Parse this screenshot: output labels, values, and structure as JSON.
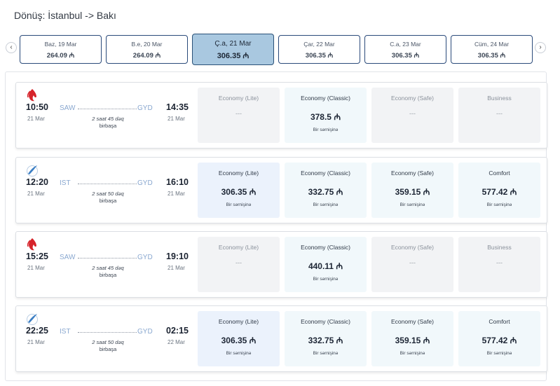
{
  "title": "Dönüş: İstanbul -> Bakı",
  "nav": {
    "prev_icon": "‹",
    "next_icon": "›"
  },
  "dates": [
    {
      "label": "Baz, 19 Mar",
      "price": "264.09 ₼",
      "active": false
    },
    {
      "label": "B.e, 20 Mar",
      "price": "264.09 ₼",
      "active": false
    },
    {
      "label": "Ç.a, 21 Mar",
      "price": "306.35 ₼",
      "active": true
    },
    {
      "label": "Çar, 22 Mar",
      "price": "306.35 ₼",
      "active": false
    },
    {
      "label": "C.a, 23 Mar",
      "price": "306.35 ₼",
      "active": false
    },
    {
      "label": "Cüm, 24 Mar",
      "price": "306.35 ₼",
      "active": false
    }
  ],
  "flights": [
    {
      "airline_icon": "red-flame-logo",
      "logo_color": "#d6232a",
      "dep_time": "10:50",
      "dep_date": "21 Mar",
      "from": "SAW",
      "arr_time": "14:35",
      "arr_date": "21 Mar",
      "to": "GYD",
      "duration": "2 saat 45 dəq",
      "stops": "birbaşa",
      "fares": [
        {
          "name": "Economy (Lite)",
          "price": "---",
          "sub": "",
          "state": "na"
        },
        {
          "name": "Economy (Classic)",
          "price": "378.5 ₼",
          "sub": "Bir sərnişinə",
          "state": "avail"
        },
        {
          "name": "Economy (Safe)",
          "price": "---",
          "sub": "",
          "state": "na"
        },
        {
          "name": "Business",
          "price": "---",
          "sub": "",
          "state": "na"
        }
      ]
    },
    {
      "airline_icon": "blue-wing-logo",
      "logo_color": "#3c7fc4",
      "dep_time": "12:20",
      "dep_date": "21 Mar",
      "from": "IST",
      "arr_time": "16:10",
      "arr_date": "21 Mar",
      "to": "GYD",
      "duration": "2 saat 50 dəq",
      "stops": "birbaşa",
      "fares": [
        {
          "name": "Economy (Lite)",
          "price": "306.35 ₼",
          "sub": "Bir sərnişinə",
          "state": "cheapest"
        },
        {
          "name": "Economy (Classic)",
          "price": "332.75 ₼",
          "sub": "Bir sərnişinə",
          "state": "avail"
        },
        {
          "name": "Economy (Safe)",
          "price": "359.15 ₼",
          "sub": "Bir sərnişinə",
          "state": "avail"
        },
        {
          "name": "Comfort",
          "price": "577.42 ₼",
          "sub": "Bir sərnişinə",
          "state": "avail"
        }
      ]
    },
    {
      "airline_icon": "red-flame-logo",
      "logo_color": "#d6232a",
      "dep_time": "15:25",
      "dep_date": "21 Mar",
      "from": "SAW",
      "arr_time": "19:10",
      "arr_date": "21 Mar",
      "to": "GYD",
      "duration": "2 saat 45 dəq",
      "stops": "birbaşa",
      "fares": [
        {
          "name": "Economy (Lite)",
          "price": "---",
          "sub": "",
          "state": "na"
        },
        {
          "name": "Economy (Classic)",
          "price": "440.11 ₼",
          "sub": "Bir sərnişinə",
          "state": "avail"
        },
        {
          "name": "Economy (Safe)",
          "price": "---",
          "sub": "",
          "state": "na"
        },
        {
          "name": "Business",
          "price": "---",
          "sub": "",
          "state": "na"
        }
      ]
    },
    {
      "airline_icon": "blue-wing-logo",
      "logo_color": "#3c7fc4",
      "dep_time": "22:25",
      "dep_date": "21 Mar",
      "from": "IST",
      "arr_time": "02:15",
      "arr_date": "22 Mar",
      "to": "GYD",
      "duration": "2 saat 50 dəq",
      "stops": "birbaşa",
      "fares": [
        {
          "name": "Economy (Lite)",
          "price": "306.35 ₼",
          "sub": "Bir sərnişinə",
          "state": "cheapest"
        },
        {
          "name": "Economy (Classic)",
          "price": "332.75 ₼",
          "sub": "Bir sərnişinə",
          "state": "avail"
        },
        {
          "name": "Economy (Safe)",
          "price": "359.15 ₼",
          "sub": "Bir sərnişinə",
          "state": "avail"
        },
        {
          "name": "Comfort",
          "price": "577.42 ₼",
          "sub": "Bir sərnişinə",
          "state": "avail"
        }
      ]
    }
  ]
}
